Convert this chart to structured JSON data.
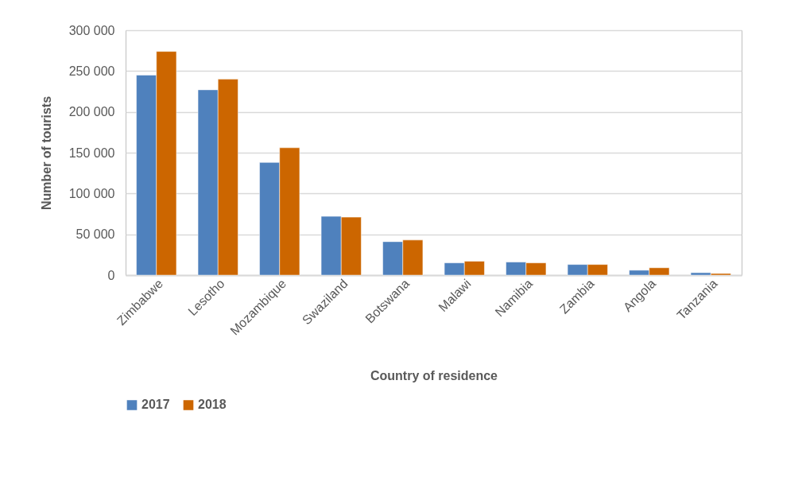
{
  "chart_data": {
    "type": "bar",
    "xlabel": "Country of residence",
    "ylabel": "Number of tourists",
    "categories": [
      "Zimbabwe",
      "Lesotho",
      "Mozambique",
      "Swaziland",
      "Botswana",
      "Malawi",
      "Namibia",
      "Zambia",
      "Angola",
      "Tanzania"
    ],
    "series": [
      {
        "name": "2017",
        "color": "#4f81bd",
        "values": [
          245000,
          227000,
          138000,
          72000,
          41000,
          15000,
          16000,
          13000,
          6000,
          3000
        ]
      },
      {
        "name": "2018",
        "color": "#cc6600",
        "values": [
          274000,
          240000,
          156000,
          71000,
          43000,
          17000,
          15000,
          13000,
          9000,
          2000
        ]
      }
    ],
    "ylim": [
      0,
      300000
    ],
    "yticks": [
      0,
      {
        "value": 50000,
        "label": "50 000"
      },
      {
        "value": 100000,
        "label": "100 000"
      },
      {
        "value": 150000,
        "label": "150 000"
      },
      {
        "value": 200000,
        "label": "200 000"
      },
      {
        "value": 250000,
        "label": "250 000"
      },
      {
        "value": 300000,
        "label": "300 000"
      }
    ],
    "grid": "y",
    "legend": "bottom"
  }
}
